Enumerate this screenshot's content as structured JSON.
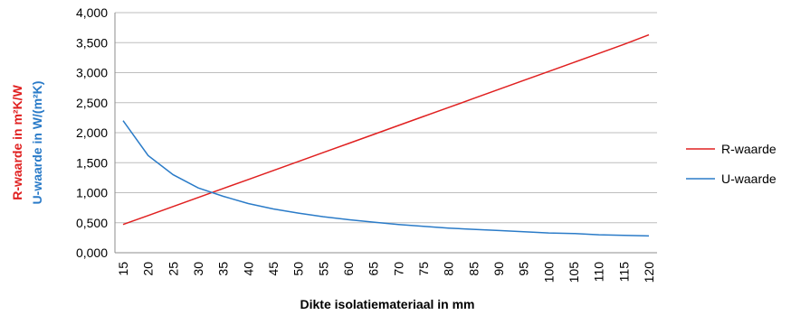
{
  "chart_data": {
    "type": "line",
    "xlabel": "Dikte isolatiemateriaal  in mm",
    "ylabel_r": "R-waarde in m²K/W",
    "ylabel_u": "U-waarde in W/(m²K)",
    "ylim": [
      0,
      4
    ],
    "y_ticks": [
      "0,000",
      "0,500",
      "1,000",
      "1,500",
      "2,000",
      "2,500",
      "3,000",
      "3,500",
      "4,000"
    ],
    "x_ticks": [
      "15",
      "20",
      "25",
      "30",
      "35",
      "40",
      "45",
      "50",
      "55",
      "60",
      "65",
      "70",
      "75",
      "80",
      "85",
      "90",
      "95",
      "100",
      "105",
      "110",
      "115",
      "120"
    ],
    "grid": true,
    "legend": "right",
    "x": [
      15,
      20,
      25,
      30,
      35,
      40,
      45,
      50,
      55,
      60,
      65,
      70,
      75,
      80,
      85,
      90,
      95,
      100,
      105,
      110,
      115,
      120
    ],
    "series": [
      {
        "name": "R-waarde",
        "color": "#e02020",
        "values": [
          0.47,
          0.62,
          0.77,
          0.92,
          1.07,
          1.22,
          1.37,
          1.52,
          1.67,
          1.82,
          1.97,
          2.12,
          2.27,
          2.42,
          2.57,
          2.72,
          2.87,
          3.02,
          3.17,
          3.32,
          3.47,
          3.63
        ]
      },
      {
        "name": "U-waarde",
        "color": "#2a7bc8",
        "values": [
          2.2,
          1.62,
          1.3,
          1.08,
          0.94,
          0.82,
          0.73,
          0.66,
          0.6,
          0.55,
          0.51,
          0.47,
          0.44,
          0.41,
          0.39,
          0.37,
          0.35,
          0.33,
          0.32,
          0.3,
          0.29,
          0.28
        ]
      }
    ]
  }
}
